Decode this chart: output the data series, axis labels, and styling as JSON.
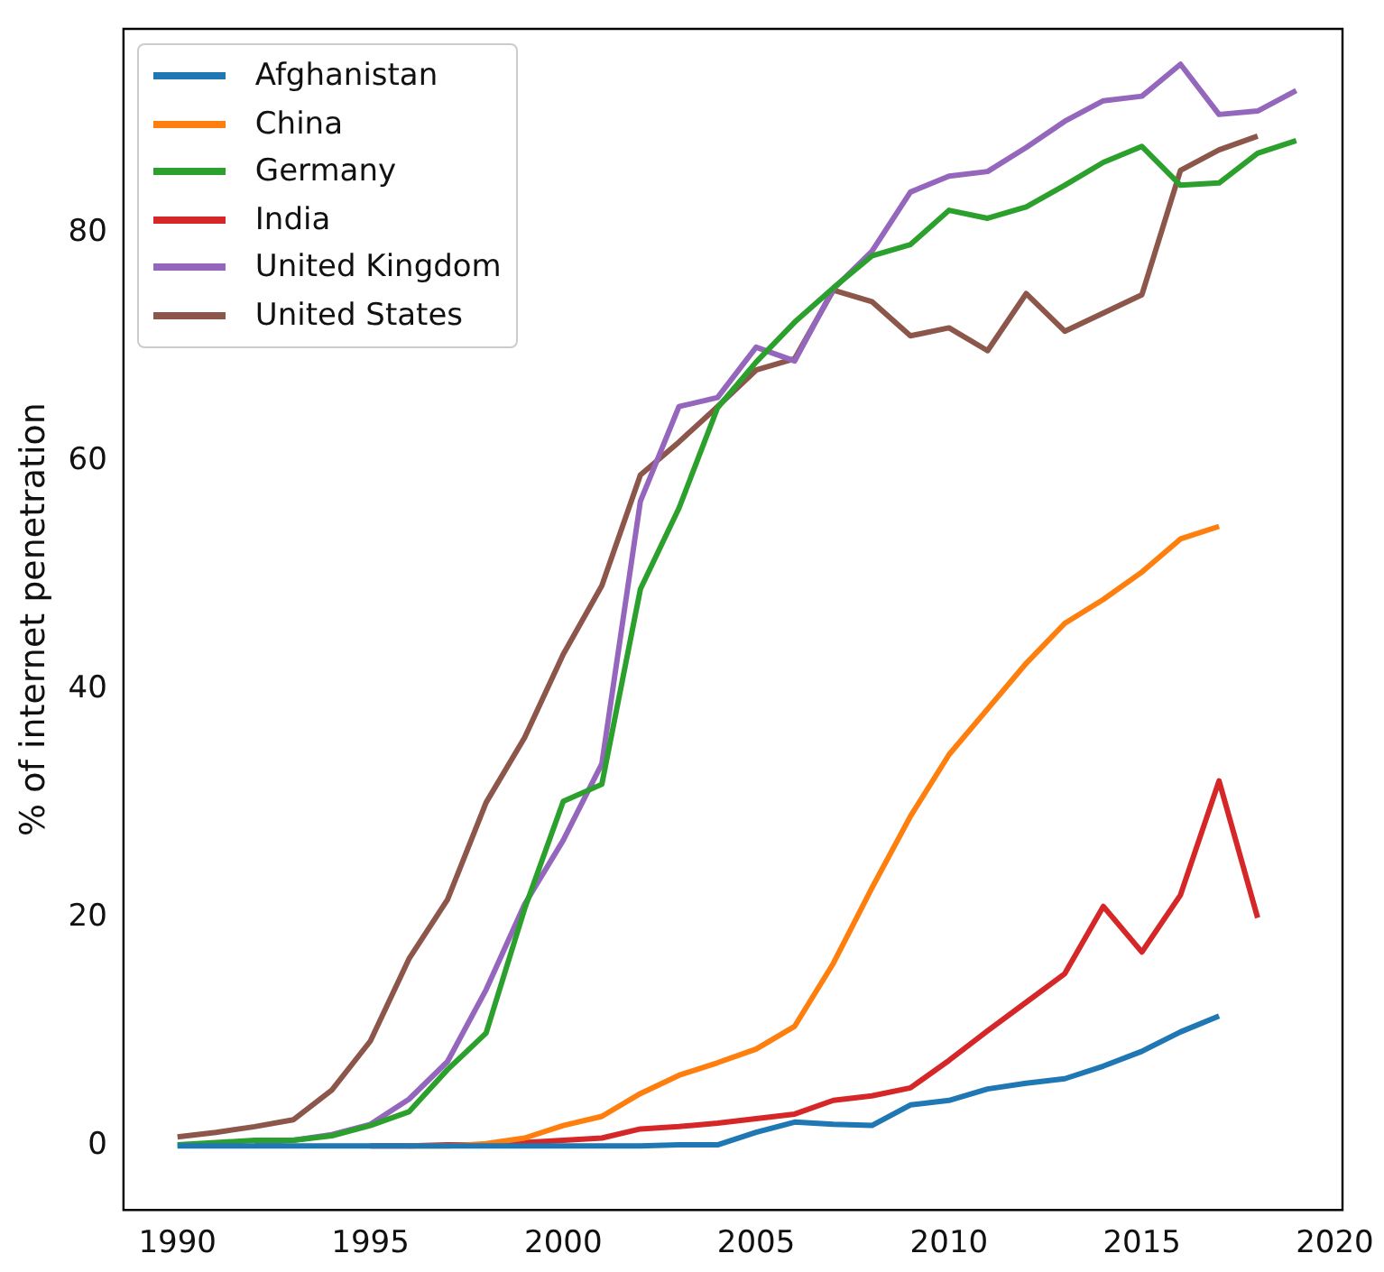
{
  "chart_data": {
    "type": "line",
    "ylabel": "% of internet penetration",
    "x": [
      1990,
      1991,
      1992,
      1993,
      1994,
      1995,
      1996,
      1997,
      1998,
      1999,
      2000,
      2001,
      2002,
      2003,
      2004,
      2005,
      2006,
      2007,
      2008,
      2009,
      2010,
      2011,
      2012,
      2013,
      2014,
      2015,
      2016,
      2017,
      2018,
      2019
    ],
    "xlim": [
      1988.6,
      2020.2
    ],
    "xticks": [
      1990,
      1995,
      2000,
      2005,
      2010,
      2015,
      2020
    ],
    "ylim": [
      -5.6,
      97.9
    ],
    "yticks": [
      0,
      20,
      40,
      60,
      80
    ],
    "grid": false,
    "legend": "top left",
    "marker": "none",
    "line_style": "solid",
    "series": [
      {
        "name": "Afghanistan",
        "color": "#1f77b4",
        "values": [
          0,
          0,
          0,
          0,
          0,
          0,
          0,
          0,
          0,
          0,
          0,
          0,
          0,
          0.1,
          0.1,
          1.2,
          2.1,
          1.9,
          1.8,
          3.6,
          4.0,
          5.0,
          5.5,
          5.9,
          7.0,
          8.3,
          10.0,
          11.4,
          null,
          null
        ]
      },
      {
        "name": "China",
        "color": "#ff7f0e",
        "values": [
          null,
          null,
          null,
          null,
          null,
          null,
          0,
          0,
          0.2,
          0.7,
          1.8,
          2.6,
          4.6,
          6.2,
          7.3,
          8.5,
          10.5,
          16.0,
          22.6,
          28.9,
          34.3,
          38.3,
          42.3,
          45.8,
          47.9,
          50.3,
          53.2,
          54.3,
          null,
          null
        ]
      },
      {
        "name": "Germany",
        "color": "#2ca02c",
        "values": [
          0.1,
          0.3,
          0.5,
          0.5,
          0.9,
          1.8,
          3.0,
          6.7,
          9.9,
          20.8,
          30.2,
          31.7,
          48.8,
          55.9,
          64.7,
          68.7,
          72.2,
          75.2,
          78.0,
          79.0,
          82.0,
          81.3,
          82.3,
          84.2,
          86.2,
          87.6,
          84.2,
          84.4,
          87.0,
          88.1
        ]
      },
      {
        "name": "India",
        "color": "#d62728",
        "values": [
          null,
          null,
          null,
          null,
          null,
          0,
          0,
          0.1,
          0.1,
          0.3,
          0.5,
          0.7,
          1.5,
          1.7,
          2.0,
          2.4,
          2.8,
          4.0,
          4.4,
          5.1,
          7.5,
          10.1,
          12.6,
          15.1,
          21.0,
          17.0,
          22.0,
          32.0,
          20.0,
          null
        ]
      },
      {
        "name": "United Kingdom",
        "color": "#9467bd",
        "values": [
          null,
          null,
          0.3,
          0.5,
          1.0,
          1.9,
          4.1,
          7.4,
          13.7,
          21.2,
          26.8,
          33.5,
          56.5,
          64.8,
          65.6,
          70.0,
          68.8,
          75.1,
          78.4,
          83.6,
          85.0,
          85.4,
          87.5,
          89.8,
          91.6,
          92.0,
          94.8,
          90.4,
          90.7,
          92.5
        ]
      },
      {
        "name": "United States",
        "color": "#8c564b",
        "values": [
          0.8,
          1.2,
          1.7,
          2.3,
          4.9,
          9.2,
          16.4,
          21.6,
          30.1,
          35.8,
          43.1,
          49.1,
          58.8,
          61.7,
          64.8,
          68.0,
          69.0,
          75.0,
          74.0,
          71.0,
          71.7,
          69.7,
          74.7,
          71.4,
          73.0,
          74.6,
          85.5,
          87.3,
          88.5,
          null
        ]
      }
    ]
  }
}
